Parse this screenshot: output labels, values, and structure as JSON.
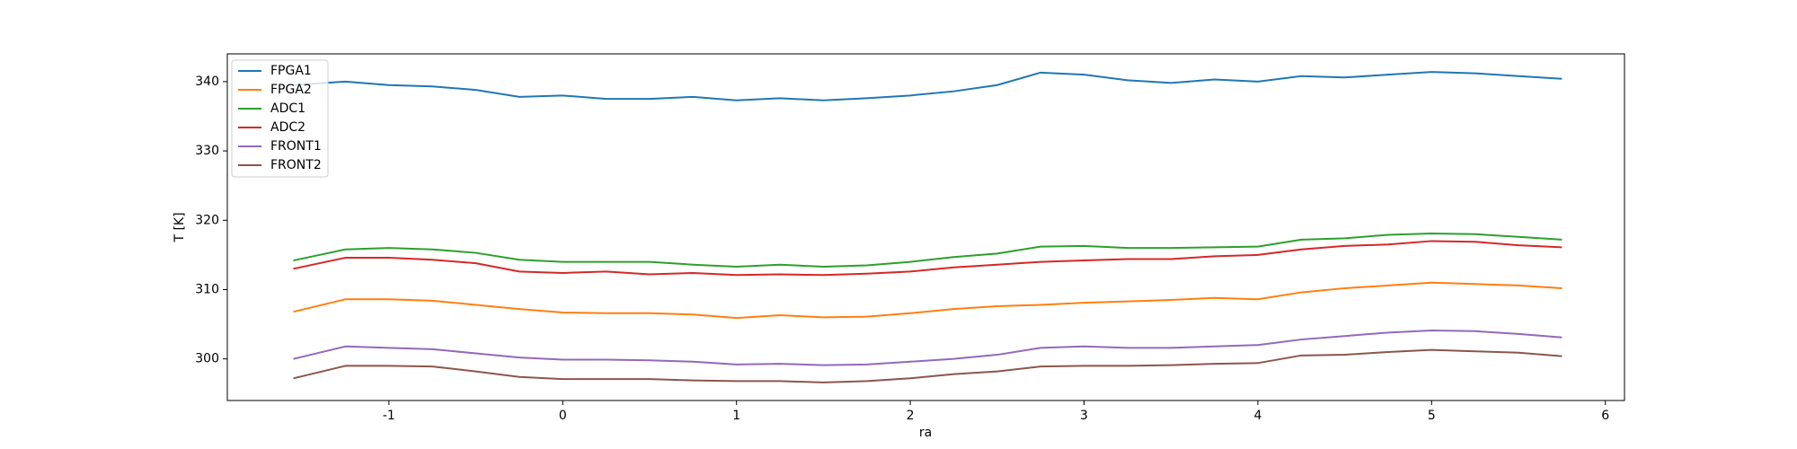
{
  "chart_data": {
    "type": "line",
    "x_label": "ra",
    "y_label": "T [K]",
    "x": [
      -1.55,
      -1.25,
      -1,
      -0.75,
      -0.5,
      -0.25,
      0,
      0.25,
      0.5,
      0.75,
      1,
      1.25,
      1.5,
      1.75,
      2,
      2.25,
      2.5,
      2.75,
      3,
      3.25,
      3.5,
      3.75,
      4,
      4.25,
      4.5,
      4.75,
      5,
      5.25,
      5.5,
      5.75
    ],
    "series": [
      {
        "name": "FPGA1",
        "color": "#1f77b4",
        "values": [
          339.5,
          340,
          339.5,
          339.3,
          338.8,
          337.8,
          338,
          337.5,
          337.5,
          337.8,
          337.3,
          337.6,
          337.3,
          337.6,
          338,
          338.6,
          339.5,
          341.3,
          341,
          340.2,
          339.8,
          340.3,
          340,
          340.8,
          340.6,
          341,
          341.4,
          341.2,
          340.8,
          340.4
        ]
      },
      {
        "name": "FPGA2",
        "color": "#ff7f0e",
        "values": [
          306.8,
          308.6,
          308.6,
          308.4,
          307.8,
          307.2,
          306.7,
          306.6,
          306.6,
          306.4,
          305.9,
          306.3,
          306,
          306.1,
          306.6,
          307.2,
          307.6,
          307.8,
          308.1,
          308.3,
          308.5,
          308.8,
          308.6,
          309.6,
          310.2,
          310.6,
          311,
          310.8,
          310.6,
          310.2
        ]
      },
      {
        "name": "ADC1",
        "color": "#2ca02c",
        "values": [
          314.2,
          315.8,
          316,
          315.8,
          315.3,
          314.3,
          314,
          314,
          314,
          313.6,
          313.3,
          313.6,
          313.3,
          313.5,
          314,
          314.7,
          315.2,
          316.2,
          316.3,
          316,
          316,
          316.1,
          316.2,
          317.2,
          317.4,
          317.9,
          318.1,
          318,
          317.6,
          317.2
        ]
      },
      {
        "name": "ADC2",
        "color": "#d62728",
        "values": [
          313,
          314.6,
          314.6,
          314.3,
          313.8,
          312.6,
          312.4,
          312.6,
          312.2,
          312.4,
          312.1,
          312.2,
          312.1,
          312.3,
          312.6,
          313.2,
          313.6,
          314,
          314.2,
          314.4,
          314.4,
          314.8,
          315,
          315.8,
          316.3,
          316.5,
          317,
          316.9,
          316.4,
          316.1
        ]
      },
      {
        "name": "FRONT1",
        "color": "#9467bd",
        "values": [
          300,
          301.8,
          301.6,
          301.4,
          300.8,
          300.2,
          299.9,
          299.9,
          299.8,
          299.6,
          299.2,
          299.3,
          299.1,
          299.2,
          299.6,
          300,
          300.6,
          301.6,
          301.8,
          301.6,
          301.6,
          301.8,
          302,
          302.8,
          303.3,
          303.8,
          304.1,
          304,
          303.6,
          303.1
        ]
      },
      {
        "name": "FRONT2",
        "color": "#8c564b",
        "values": [
          297.2,
          299,
          299,
          298.9,
          298.2,
          297.4,
          297.1,
          297.1,
          297.1,
          296.9,
          296.8,
          296.8,
          296.6,
          296.8,
          297.2,
          297.8,
          298.2,
          298.9,
          299,
          299,
          299.1,
          299.3,
          299.4,
          300.5,
          300.6,
          301,
          301.3,
          301.1,
          300.9,
          300.4
        ]
      }
    ],
    "xlim": [
      -1.93,
      6.11
    ],
    "ylim": [
      294.0,
      344.0
    ],
    "xticks": [
      -1,
      0,
      1,
      2,
      3,
      4,
      5,
      6
    ],
    "yticks": [
      300,
      310,
      320,
      330,
      340
    ],
    "legend": "upper left"
  }
}
